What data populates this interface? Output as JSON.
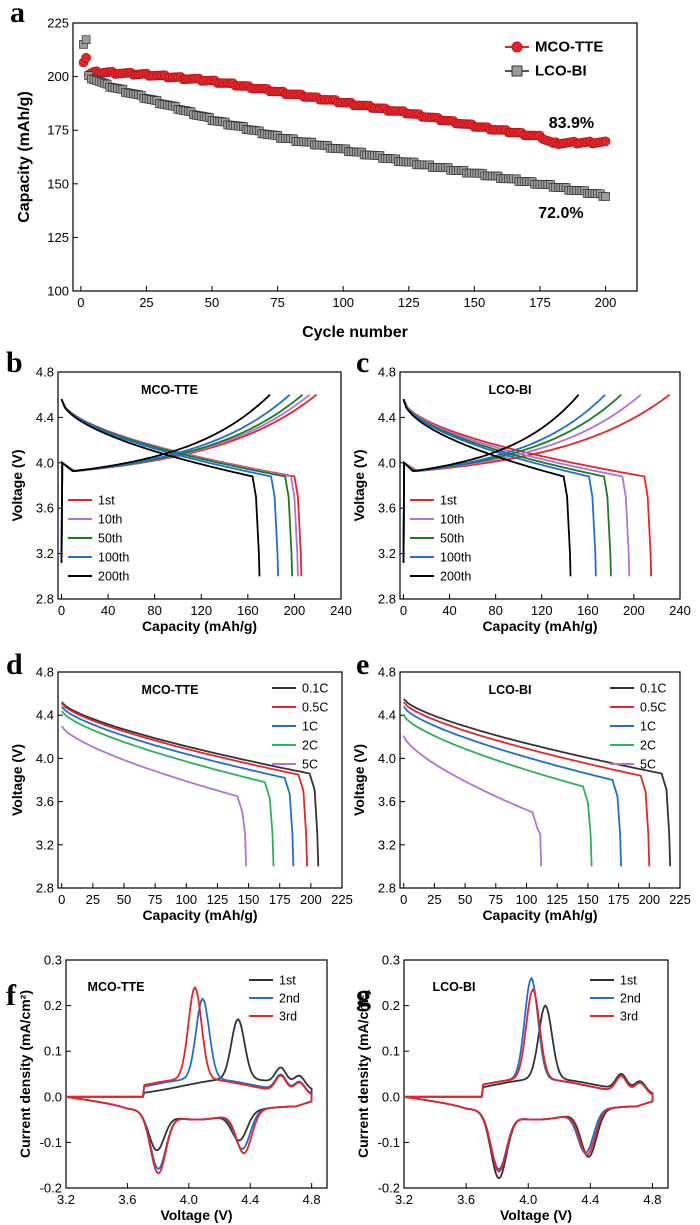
{
  "chart_data": [
    {
      "panel": "a",
      "type": "scatter",
      "xlabel": "Cycle number",
      "ylabel": "Capacity (mAh/g)",
      "xlim": [
        -3,
        212
      ],
      "ylim": [
        100,
        225
      ],
      "xticks": [
        0,
        25,
        50,
        75,
        100,
        125,
        150,
        175,
        200
      ],
      "yticks": [
        100,
        125,
        150,
        175,
        200,
        225
      ],
      "legend": "top-right",
      "series": [
        {
          "name": "MCO-TTE",
          "color": "#e8232a",
          "marker": "circle",
          "x": [
            1,
            2,
            3,
            5,
            10,
            25,
            50,
            75,
            100,
            125,
            150,
            175,
            180,
            200
          ],
          "y": [
            207,
            209,
            201,
            202,
            202,
            201,
            198,
            193,
            188,
            183,
            177,
            172,
            169,
            169.5
          ]
        },
        {
          "name": "LCO-BI",
          "color": "#555555",
          "marker": "square",
          "x": [
            1,
            2,
            3,
            5,
            10,
            25,
            50,
            75,
            100,
            125,
            150,
            175,
            200
          ],
          "y": [
            215,
            217,
            200,
            199,
            196,
            190,
            180,
            172,
            166,
            160,
            155,
            150,
            144.5
          ]
        }
      ],
      "annotations": [
        {
          "text": "83.9%",
          "x": 187,
          "y": 176
        },
        {
          "text": "72.0%",
          "x": 183,
          "y": 134
        }
      ]
    },
    {
      "panel": "b",
      "type": "line",
      "title": "MCO-TTE",
      "xlabel": "Capacity (mAh/g)",
      "ylabel": "Voltage (V)",
      "xlim": [
        -3,
        240
      ],
      "ylim": [
        2.8,
        4.8
      ],
      "xticks": [
        0,
        40,
        80,
        120,
        160,
        200,
        240
      ],
      "yticks": [
        2.8,
        3.2,
        3.6,
        4.0,
        4.4,
        4.8
      ],
      "legend": "bottom-left",
      "series": [
        {
          "name": "1st",
          "color": "#e8232a",
          "charge_end": 219,
          "discharge_end": 206
        },
        {
          "name": "10th",
          "color": "#b273d6",
          "charge_end": 213,
          "discharge_end": 203
        },
        {
          "name": "50th",
          "color": "#1e7a1e",
          "charge_end": 207,
          "discharge_end": 198
        },
        {
          "name": "100th",
          "color": "#1f6fd1",
          "charge_end": 196,
          "discharge_end": 186
        },
        {
          "name": "200th",
          "color": "#000000",
          "charge_end": 179,
          "discharge_end": 170
        }
      ]
    },
    {
      "panel": "c",
      "type": "line",
      "title": "LCO-BI",
      "xlabel": "Capacity (mAh/g)",
      "ylabel": "Voltage (V)",
      "xlim": [
        -3,
        240
      ],
      "ylim": [
        2.8,
        4.8
      ],
      "xticks": [
        0,
        40,
        80,
        120,
        160,
        200,
        240
      ],
      "yticks": [
        2.8,
        3.2,
        3.6,
        4.0,
        4.4,
        4.8
      ],
      "legend": "bottom-left",
      "series": [
        {
          "name": "1st",
          "color": "#e8232a",
          "charge_end": 231,
          "discharge_end": 215
        },
        {
          "name": "10th",
          "color": "#b273d6",
          "charge_end": 206,
          "discharge_end": 196
        },
        {
          "name": "50th",
          "color": "#1e7a1e",
          "charge_end": 189,
          "discharge_end": 180
        },
        {
          "name": "100th",
          "color": "#1f6fd1",
          "charge_end": 175,
          "discharge_end": 167
        },
        {
          "name": "200th",
          "color": "#000000",
          "charge_end": 152,
          "discharge_end": 145
        }
      ]
    },
    {
      "panel": "d",
      "type": "line",
      "title": "MCO-TTE",
      "xlabel": "Capacity (mAh/g)",
      "ylabel": "Voltage (V)",
      "xlim": [
        -3,
        225
      ],
      "ylim": [
        2.8,
        4.8
      ],
      "xticks": [
        0,
        25,
        50,
        75,
        100,
        125,
        150,
        175,
        200,
        225
      ],
      "yticks": [
        2.8,
        3.2,
        3.6,
        4.0,
        4.4,
        4.8
      ],
      "legend": "top-right",
      "series": [
        {
          "name": "0.1C",
          "color": "#333333",
          "start_v": 4.52,
          "plateau_v": 3.86,
          "end": 206
        },
        {
          "name": "0.5C",
          "color": "#e8232a",
          "start_v": 4.51,
          "plateau_v": 3.85,
          "end": 197
        },
        {
          "name": "1C",
          "color": "#1f6fd1",
          "start_v": 4.48,
          "plateau_v": 3.82,
          "end": 186
        },
        {
          "name": "2C",
          "color": "#2bb15b",
          "start_v": 4.44,
          "plateau_v": 3.78,
          "end": 170
        },
        {
          "name": "5C",
          "color": "#b273d6",
          "start_v": 4.3,
          "plateau_v": 3.65,
          "end": 148
        }
      ]
    },
    {
      "panel": "e",
      "type": "line",
      "title": "LCO-BI",
      "xlabel": "Capacity (mAh/g)",
      "ylabel": "Voltage (V)",
      "xlim": [
        -3,
        225
      ],
      "ylim": [
        2.8,
        4.8
      ],
      "xticks": [
        0,
        25,
        50,
        75,
        100,
        125,
        150,
        175,
        200,
        225
      ],
      "yticks": [
        2.8,
        3.2,
        3.6,
        4.0,
        4.4,
        4.8
      ],
      "legend": "top-right",
      "series": [
        {
          "name": "0.1C",
          "color": "#333333",
          "start_v": 4.55,
          "plateau_v": 3.86,
          "end": 217
        },
        {
          "name": "0.5C",
          "color": "#e8232a",
          "start_v": 4.52,
          "plateau_v": 3.84,
          "end": 200
        },
        {
          "name": "1C",
          "color": "#1f6fd1",
          "start_v": 4.48,
          "plateau_v": 3.8,
          "end": 177
        },
        {
          "name": "2C",
          "color": "#2bb15b",
          "start_v": 4.4,
          "plateau_v": 3.74,
          "end": 153
        },
        {
          "name": "5C",
          "color": "#b273d6",
          "start_v": 4.21,
          "plateau_v": 3.5,
          "end": 112
        }
      ]
    },
    {
      "panel": "f",
      "type": "line",
      "title": "MCO-TTE",
      "xlabel": "Voltage (V)",
      "ylabel": "Current density (mA/cm²)",
      "xlim": [
        3.2,
        4.9
      ],
      "ylim": [
        -0.2,
        0.3
      ],
      "xticks": [
        3.2,
        3.6,
        4.0,
        4.4,
        4.8
      ],
      "yticks": [
        -0.2,
        -0.1,
        0.0,
        0.1,
        0.2,
        0.3
      ],
      "legend": "top-right",
      "series": [
        {
          "name": "1st",
          "color": "#333333",
          "ox_peak": [
            4.32,
            0.17
          ],
          "red_peak1": [
            3.79,
            -0.1
          ],
          "red_peak2": [
            4.33,
            -0.1
          ]
        },
        {
          "name": "2nd",
          "color": "#1f6fd1",
          "ox_peak": [
            4.09,
            0.215
          ],
          "red_peak1": [
            3.8,
            -0.14
          ],
          "red_peak2": [
            4.35,
            -0.12
          ]
        },
        {
          "name": "3rd",
          "color": "#e8232a",
          "ox_peak": [
            4.04,
            0.24
          ],
          "red_peak1": [
            3.8,
            -0.15
          ],
          "red_peak2": [
            4.36,
            -0.13
          ]
        }
      ]
    },
    {
      "panel": "g",
      "type": "line",
      "title": "LCO-BI",
      "xlabel": "Voltage (V)",
      "ylabel": "Current density (mA/cm²)",
      "xlim": [
        3.2,
        4.9
      ],
      "ylim": [
        -0.2,
        0.3
      ],
      "xticks": [
        3.2,
        3.6,
        4.0,
        4.4,
        4.8
      ],
      "yticks": [
        -0.2,
        -0.1,
        0.0,
        0.1,
        0.2,
        0.3
      ],
      "legend": "top-right",
      "series": [
        {
          "name": "1st",
          "color": "#333333",
          "ox_peak": [
            4.11,
            0.2
          ],
          "red_peak1": [
            3.81,
            -0.16
          ],
          "red_peak2": [
            4.39,
            -0.14
          ]
        },
        {
          "name": "2nd",
          "color": "#1f6fd1",
          "ox_peak": [
            4.02,
            0.26
          ],
          "red_peak1": [
            3.81,
            -0.14
          ],
          "red_peak2": [
            4.37,
            -0.13
          ]
        },
        {
          "name": "3rd",
          "color": "#e8232a",
          "ox_peak": [
            4.03,
            0.235
          ],
          "red_peak1": [
            3.81,
            -0.145
          ],
          "red_peak2": [
            4.38,
            -0.135
          ]
        }
      ]
    }
  ]
}
